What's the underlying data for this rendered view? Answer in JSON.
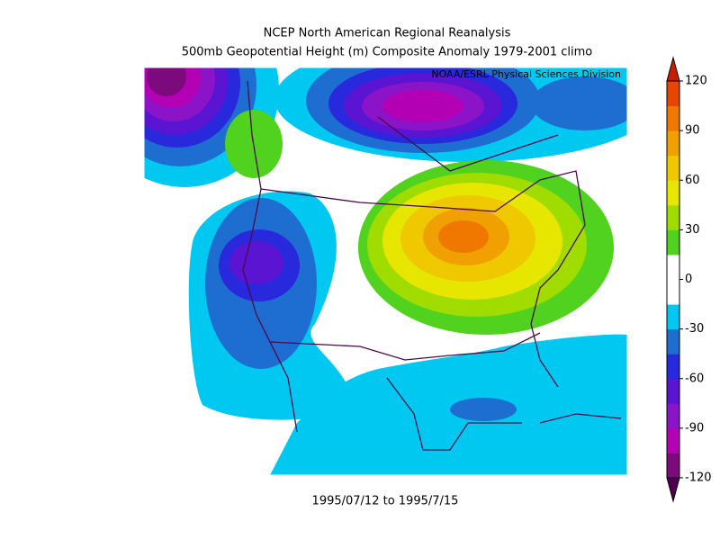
{
  "header": {
    "title": "NCEP North American Regional Reanalysis",
    "subtitle": "500mb Geopotential Height (m) Composite Anomaly 1979-2001 climo",
    "credit": "NOAA/ESRL Physical Sciences Division"
  },
  "footer": {
    "date_range": "1995/07/12 to 1995/7/15"
  },
  "colorbar": {
    "lim": [
      -120,
      120
    ],
    "ticks": [
      120,
      90,
      60,
      30,
      0,
      -30,
      -60,
      -90,
      -120
    ],
    "colors": [
      "#7d0a7d",
      "#b400b4",
      "#8c14c8",
      "#5a14d2",
      "#2828dc",
      "#1e6ed2",
      "#00c8f0",
      "#ffffff",
      "#ffffff",
      "#50d21e",
      "#a0dc00",
      "#e6e600",
      "#f0c800",
      "#f0a000",
      "#f07800",
      "#e64600"
    ],
    "under_color": "#500050",
    "over_color": "#c81e00"
  }
}
